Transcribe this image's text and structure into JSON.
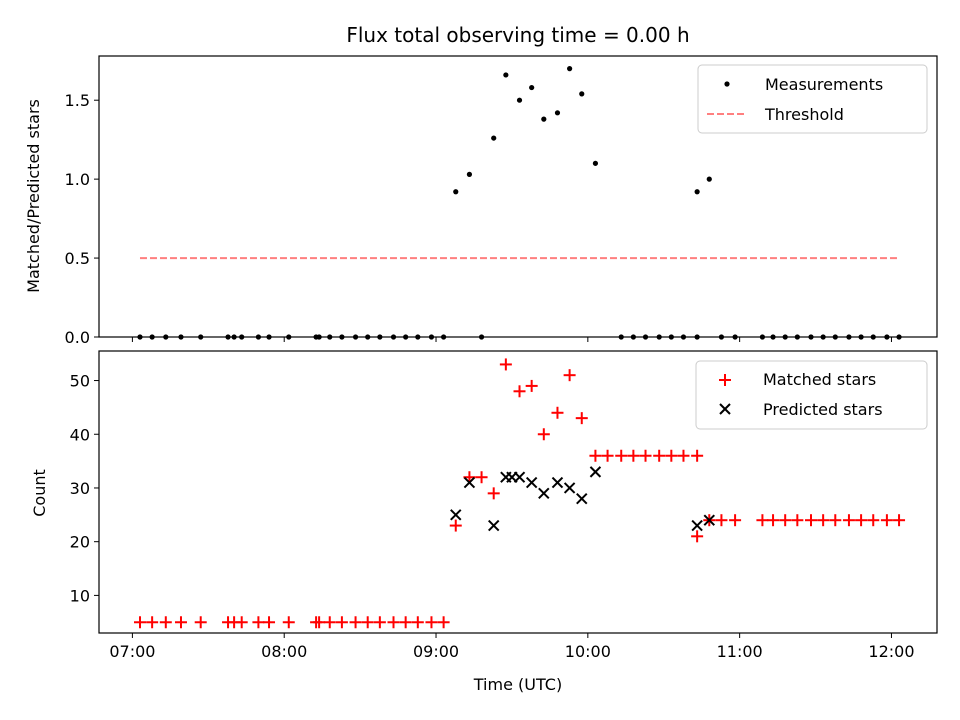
{
  "chart_data": {
    "title": "Flux total observing time = 0.00 h",
    "xlabel": "Time (UTC)",
    "xticks": [
      "07:00",
      "08:00",
      "09:00",
      "10:00",
      "11:00",
      "12:00"
    ],
    "xlim_hours": [
      6.78,
      12.3
    ],
    "panels": [
      {
        "type": "scatter",
        "ylabel": "Matched/Predicted stars",
        "ylim": [
          0,
          1.78
        ],
        "yticks": [
          0.0,
          0.5,
          1.0,
          1.5
        ],
        "ytick_labels": [
          "0.0",
          "0.5",
          "1.0",
          "1.5"
        ],
        "legend_position": "top-right",
        "series": [
          {
            "name": "Measurements",
            "marker": "dot",
            "color": "#000000",
            "points": [
              [
                7.05,
                0
              ],
              [
                7.13,
                0
              ],
              [
                7.22,
                0
              ],
              [
                7.32,
                0
              ],
              [
                7.45,
                0
              ],
              [
                7.63,
                0
              ],
              [
                7.67,
                0
              ],
              [
                7.72,
                0
              ],
              [
                7.83,
                0
              ],
              [
                7.9,
                0
              ],
              [
                8.03,
                0
              ],
              [
                8.21,
                0
              ],
              [
                8.23,
                0
              ],
              [
                8.3,
                0
              ],
              [
                8.38,
                0
              ],
              [
                8.47,
                0
              ],
              [
                8.55,
                0
              ],
              [
                8.63,
                0
              ],
              [
                8.72,
                0
              ],
              [
                8.8,
                0
              ],
              [
                8.88,
                0
              ],
              [
                8.97,
                0
              ],
              [
                9.05,
                0
              ],
              [
                9.3,
                0
              ],
              [
                9.13,
                0.92
              ],
              [
                9.22,
                1.03
              ],
              [
                9.38,
                1.26
              ],
              [
                9.46,
                1.66
              ],
              [
                9.55,
                1.5
              ],
              [
                9.63,
                1.58
              ],
              [
                9.71,
                1.38
              ],
              [
                9.8,
                1.42
              ],
              [
                9.88,
                1.7
              ],
              [
                9.96,
                1.54
              ],
              [
                10.05,
                1.1
              ],
              [
                10.22,
                0
              ],
              [
                10.3,
                0
              ],
              [
                10.38,
                0
              ],
              [
                10.47,
                0
              ],
              [
                10.55,
                0
              ],
              [
                10.63,
                0
              ],
              [
                10.72,
                0
              ],
              [
                10.88,
                0
              ],
              [
                10.97,
                0
              ],
              [
                10.72,
                0.92
              ],
              [
                10.8,
                1.0
              ],
              [
                11.15,
                0
              ],
              [
                11.22,
                0
              ],
              [
                11.3,
                0
              ],
              [
                11.38,
                0
              ],
              [
                11.47,
                0
              ],
              [
                11.55,
                0
              ],
              [
                11.63,
                0
              ],
              [
                11.72,
                0
              ],
              [
                11.8,
                0
              ],
              [
                11.88,
                0
              ],
              [
                11.97,
                0
              ],
              [
                12.05,
                0
              ]
            ]
          },
          {
            "name": "Threshold",
            "marker": "dashed-line",
            "color": "#ff7f7f",
            "points": [
              [
                7.05,
                0.5
              ],
              [
                12.05,
                0.5
              ]
            ]
          }
        ]
      },
      {
        "type": "scatter",
        "ylabel": "Count",
        "ylim": [
          3,
          55.5
        ],
        "yticks": [
          10,
          20,
          30,
          40,
          50
        ],
        "ytick_labels": [
          "10",
          "20",
          "30",
          "40",
          "50"
        ],
        "legend_position": "top-right",
        "series": [
          {
            "name": "Matched stars",
            "marker": "plus",
            "color": "#ff0000",
            "points": [
              [
                7.05,
                5
              ],
              [
                7.13,
                5
              ],
              [
                7.22,
                5
              ],
              [
                7.32,
                5
              ],
              [
                7.45,
                5
              ],
              [
                7.63,
                5
              ],
              [
                7.67,
                5
              ],
              [
                7.72,
                5
              ],
              [
                7.83,
                5
              ],
              [
                7.9,
                5
              ],
              [
                8.03,
                5
              ],
              [
                8.21,
                5
              ],
              [
                8.23,
                5
              ],
              [
                8.3,
                5
              ],
              [
                8.38,
                5
              ],
              [
                8.47,
                5
              ],
              [
                8.55,
                5
              ],
              [
                8.63,
                5
              ],
              [
                8.72,
                5
              ],
              [
                8.8,
                5
              ],
              [
                8.88,
                5
              ],
              [
                8.97,
                5
              ],
              [
                9.05,
                5
              ],
              [
                9.13,
                23
              ],
              [
                9.22,
                32
              ],
              [
                9.3,
                32
              ],
              [
                9.38,
                29
              ],
              [
                9.46,
                53
              ],
              [
                9.55,
                48
              ],
              [
                9.63,
                49
              ],
              [
                9.71,
                40
              ],
              [
                9.8,
                44
              ],
              [
                9.88,
                51
              ],
              [
                9.96,
                43
              ],
              [
                10.05,
                36
              ],
              [
                10.13,
                36
              ],
              [
                10.22,
                36
              ],
              [
                10.3,
                36
              ],
              [
                10.38,
                36
              ],
              [
                10.47,
                36
              ],
              [
                10.55,
                36
              ],
              [
                10.63,
                36
              ],
              [
                10.72,
                36
              ],
              [
                10.72,
                21
              ],
              [
                10.8,
                24
              ],
              [
                10.88,
                24
              ],
              [
                10.97,
                24
              ],
              [
                11.15,
                24
              ],
              [
                11.22,
                24
              ],
              [
                11.3,
                24
              ],
              [
                11.38,
                24
              ],
              [
                11.47,
                24
              ],
              [
                11.55,
                24
              ],
              [
                11.63,
                24
              ],
              [
                11.72,
                24
              ],
              [
                11.8,
                24
              ],
              [
                11.88,
                24
              ],
              [
                11.97,
                24
              ],
              [
                12.05,
                24
              ]
            ]
          },
          {
            "name": "Predicted stars",
            "marker": "cross",
            "color": "#000000",
            "points": [
              [
                9.13,
                25
              ],
              [
                9.22,
                31
              ],
              [
                9.38,
                23
              ],
              [
                9.46,
                32
              ],
              [
                9.5,
                32
              ],
              [
                9.55,
                32
              ],
              [
                9.63,
                31
              ],
              [
                9.71,
                29
              ],
              [
                9.8,
                31
              ],
              [
                9.88,
                30
              ],
              [
                9.96,
                28
              ],
              [
                10.05,
                33
              ],
              [
                10.72,
                23
              ],
              [
                10.8,
                24
              ]
            ]
          }
        ]
      }
    ]
  }
}
